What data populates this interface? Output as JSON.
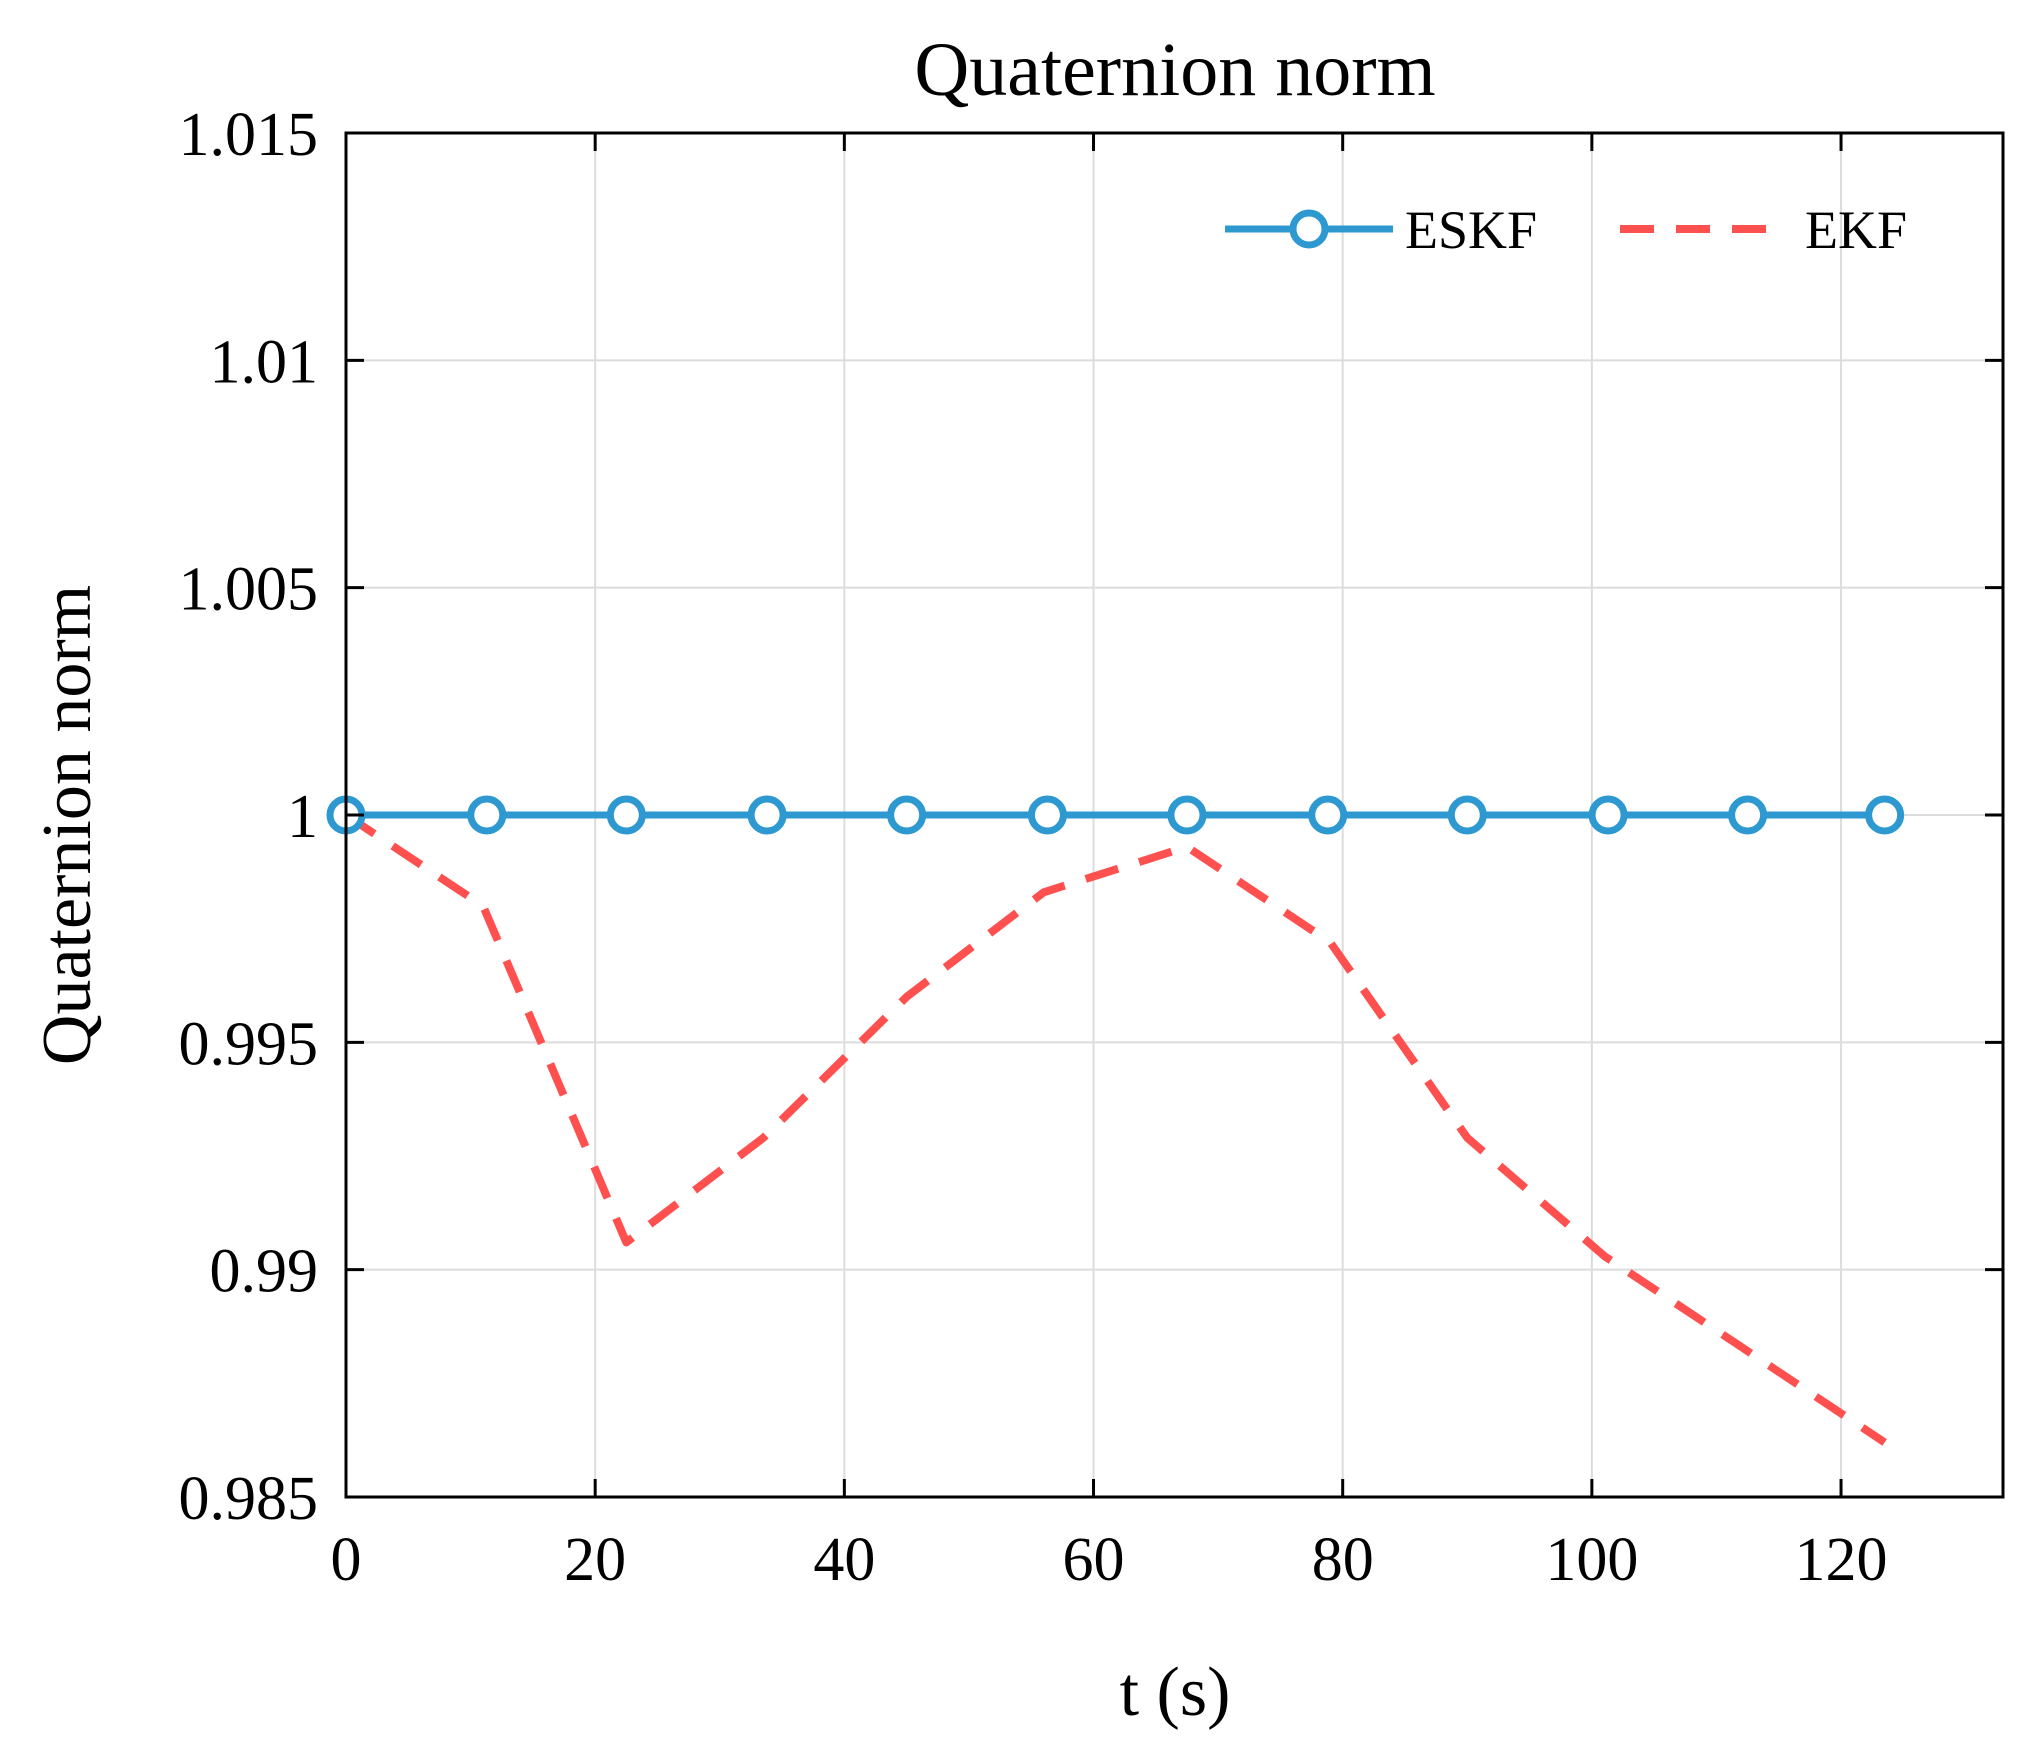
{
  "colors": {
    "eskf": "#2e98d0",
    "ekf": "#ff5050",
    "grid": "#dcdcdc",
    "axis": "#000000"
  },
  "chart_data": {
    "type": "line",
    "title": "Quaternion norm",
    "xlabel": "t (s)",
    "ylabel": "Quaternion norm",
    "xlim": [
      0,
      133
    ],
    "ylim": [
      0.985,
      1.015
    ],
    "xticks": [
      0,
      20,
      40,
      60,
      80,
      100,
      120
    ],
    "xtick_labels": [
      "0",
      "20",
      "40",
      "60",
      "80",
      "100",
      "120"
    ],
    "yticks": [
      0.985,
      0.99,
      0.995,
      1.0,
      1.005,
      1.01,
      1.015
    ],
    "ytick_labels": [
      "0.985",
      "0.99",
      "0.995",
      "1",
      "1.005",
      "1.01",
      "1.015"
    ],
    "grid": true,
    "legend_position": "top-right",
    "series": [
      {
        "name": "ESKF",
        "style": "solid-circle-markers",
        "x": [
          0,
          11.3,
          22.5,
          33.8,
          45,
          56.3,
          67.5,
          78.8,
          90,
          101.3,
          112.5,
          123.5
        ],
        "y": [
          1.0,
          1.0,
          1.0,
          1.0,
          1.0,
          1.0,
          1.0,
          1.0,
          1.0,
          1.0,
          1.0,
          1.0
        ]
      },
      {
        "name": "EKF",
        "style": "dashed",
        "x": [
          0,
          11,
          22.5,
          33.5,
          45,
          56,
          67.5,
          79,
          90,
          101,
          112,
          123.5
        ],
        "y": [
          1.0,
          0.998,
          0.9906,
          0.9929,
          0.996,
          0.9983,
          0.9993,
          0.9972,
          0.9929,
          0.9903,
          0.9883,
          0.9862
        ]
      }
    ]
  }
}
